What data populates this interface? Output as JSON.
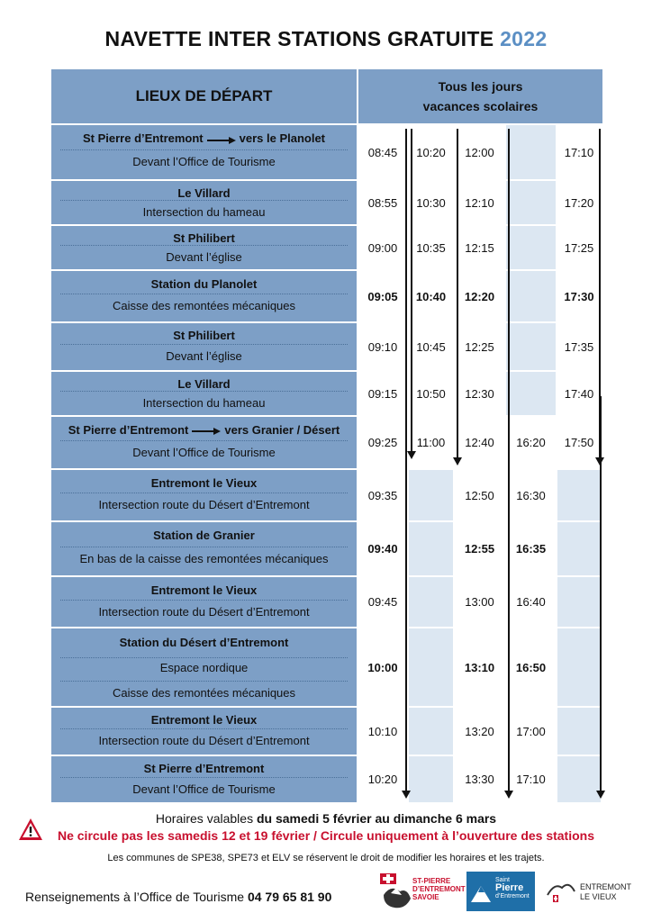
{
  "title": {
    "main": "NAVETTE INTER STATIONS GRATUITE",
    "year": "2022"
  },
  "header": {
    "departures": "LIEUX DE DÉPART",
    "days_line1": "Tous les jours",
    "days_line2": "vacances scolaires"
  },
  "stops": [
    {
      "name": "St Pierre d’Entremont",
      "dir": "vers le Planolet",
      "desc": "Devant l’Office de Tourisme",
      "times": [
        "08:45",
        "10:20",
        "12:00",
        "",
        "17:10"
      ]
    },
    {
      "name": "Le Villard",
      "desc": "Intersection du hameau",
      "times": [
        "08:55",
        "10:30",
        "12:10",
        "",
        "17:20"
      ]
    },
    {
      "name": "St Philibert",
      "desc": "Devant l’église",
      "times": [
        "09:00",
        "10:35",
        "12:15",
        "",
        "17:25"
      ]
    },
    {
      "name": "Station du Planolet",
      "desc": "Caisse des remontées mécaniques",
      "times": [
        "09:05",
        "10:40",
        "12:20",
        "",
        "17:30"
      ],
      "bold": true
    },
    {
      "name": "St Philibert",
      "desc": "Devant l’église",
      "times": [
        "09:10",
        "10:45",
        "12:25",
        "",
        "17:35"
      ]
    },
    {
      "name": "Le Villard",
      "desc": "Intersection du hameau",
      "times": [
        "09:15",
        "10:50",
        "12:30",
        "",
        "17:40"
      ]
    },
    {
      "name": "St Pierre d’Entremont",
      "dir": "vers Granier / Désert",
      "desc": "Devant l’Office de Tourisme",
      "times": [
        "09:25",
        "11:00",
        "12:40",
        "16:20",
        "17:50"
      ]
    },
    {
      "name": "Entremont le Vieux",
      "desc": "Intersection route du Désert d’Entremont",
      "times": [
        "09:35",
        "",
        "12:50",
        "16:30",
        ""
      ]
    },
    {
      "name": "Station de Granier",
      "desc": "En bas de la caisse des remontées mécaniques",
      "times": [
        "09:40",
        "",
        "12:55",
        "16:35",
        ""
      ],
      "bold": true
    },
    {
      "name": "Entremont le Vieux",
      "desc": "Intersection route du Désert d’Entremont",
      "times": [
        "09:45",
        "",
        "13:00",
        "16:40",
        ""
      ]
    },
    {
      "name": "Station du Désert d’Entremont",
      "desc": "Espace nordique",
      "desc2": "Caisse des remontées mécaniques",
      "times": [
        "10:00",
        "",
        "13:10",
        "16:50",
        ""
      ],
      "bold": true
    },
    {
      "name": "Entremont le Vieux",
      "desc": "Intersection route du Désert d’Entremont",
      "times": [
        "10:10",
        "",
        "13:20",
        "17:00",
        ""
      ]
    },
    {
      "name": "St Pierre d’Entremont",
      "desc": "Devant l’Office de Tourisme",
      "times": [
        "10:20",
        "",
        "13:30",
        "17:10",
        ""
      ]
    }
  ],
  "footer": {
    "validity_prefix": "Horaires valables ",
    "validity_dates": "du samedi 5 février au dimanche 6 mars",
    "warning": "Ne circule pas les samedis 12 et 19 février / Circule uniquement à l’ouverture des stations",
    "disclaimer": "Les communes de SPE38, SPE73 et ELV se réservent le droit de modifier les horaires et les trajets.",
    "info_prefix": "Renseignements à l’Office de Tourisme ",
    "phone": "04 79 65 81 90"
  },
  "logos": {
    "spe_line1": "ST-PIERRE",
    "spe_line2": "D’ENTREMONT",
    "spe_line3": "SAVOIE",
    "spe38_line1": "Saint",
    "spe38_line2": "Pierre",
    "spe38_line3": "d’Entremont",
    "elv_line1": "ENTREMONT",
    "elv_line2": "LE VIEUX"
  },
  "colors": {
    "header_blue": "#7d9fc6",
    "pale_blue": "#dce7f2",
    "year_blue": "#5b8fc4",
    "warning_red": "#c8102e"
  }
}
